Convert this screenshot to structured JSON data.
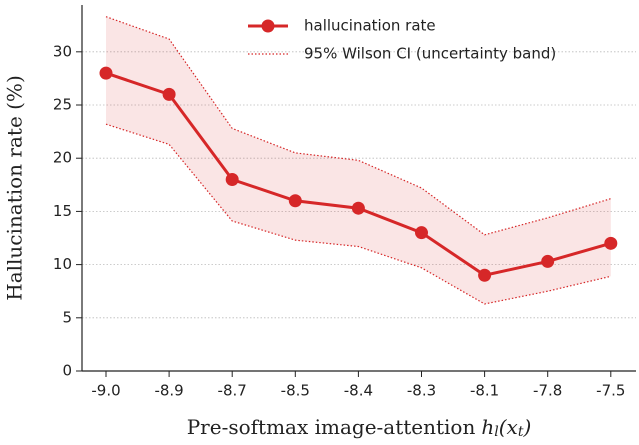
{
  "chart_data": {
    "type": "line",
    "x_label": "Pre-softmax image-attention",
    "x_label_math": [
      {
        "text": "h"
      },
      {
        "text": "l",
        "sub": true
      },
      {
        "text": "(x"
      },
      {
        "text": "t",
        "sub": true
      },
      {
        "text": ")"
      }
    ],
    "y_label": "Hallucination rate (%)",
    "categories": [
      "-9.0",
      "-8.9",
      "-8.7",
      "-8.5",
      "-8.4",
      "-8.3",
      "-8.1",
      "-7.8",
      "-7.5"
    ],
    "series": [
      {
        "name": "hallucination rate",
        "color": "#d62728",
        "values": [
          28,
          26,
          18,
          16,
          15.3,
          13,
          9,
          10.3,
          12
        ]
      }
    ],
    "band": {
      "name": "95% Wilson CI (uncertainty band)",
      "color": "#d62728",
      "lower": [
        23.2,
        21.3,
        14.1,
        12.3,
        11.7,
        9.7,
        6.3,
        7.5,
        8.9
      ],
      "upper": [
        33.3,
        31.2,
        22.8,
        20.5,
        19.8,
        17.2,
        12.8,
        14.4,
        16.2
      ]
    },
    "ylim": [
      0,
      34.4
    ],
    "yticks": [
      0,
      5,
      10,
      15,
      20,
      25,
      30
    ],
    "grid": true,
    "legend": "upper center"
  }
}
